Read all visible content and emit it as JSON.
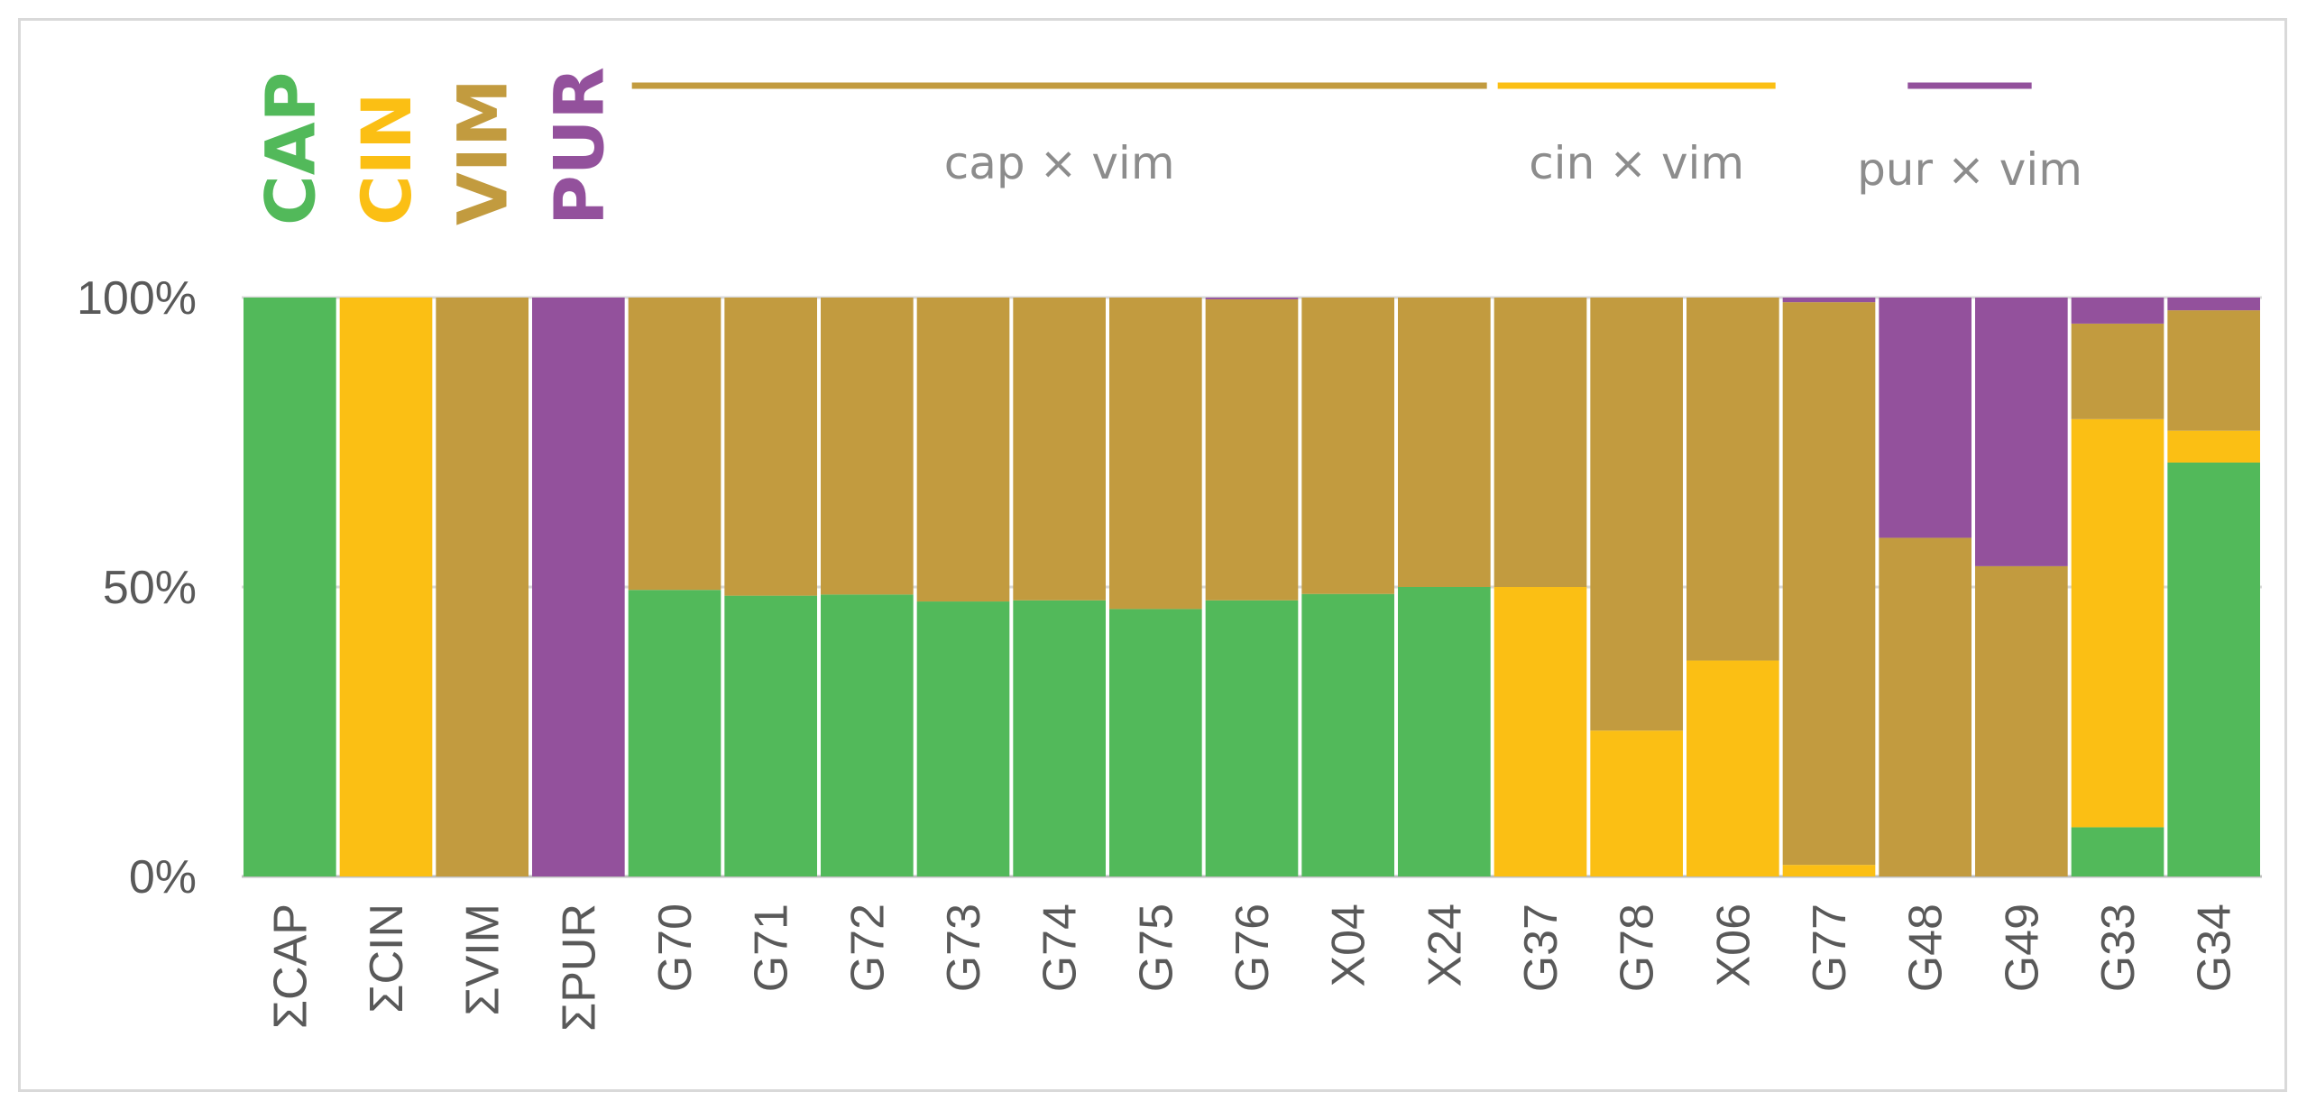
{
  "chart_data": {
    "type": "bar",
    "stacked": true,
    "normalized": true,
    "title": "",
    "xlabel": "",
    "ylabel": "",
    "ylim": [
      0,
      100
    ],
    "yticks": [
      "0%",
      "50%",
      "100%"
    ],
    "categories": [
      "ΣCAP",
      "ΣCIN",
      "ΣVIM",
      "ΣPUR",
      "G70",
      "G71",
      "G72",
      "G73",
      "G74",
      "G75",
      "G76",
      "X04",
      "X24",
      "G37",
      "G78",
      "X06",
      "G77",
      "G48",
      "G49",
      "G33",
      "G34"
    ],
    "series": [
      {
        "name": "CAP",
        "color": "#52b95a",
        "values": [
          100,
          0,
          0,
          0,
          49.5,
          48.5,
          48.7,
          47.5,
          47.7,
          46.2,
          47.7,
          48.8,
          50,
          0,
          0,
          0,
          0,
          0,
          0,
          8.5,
          71.5
        ]
      },
      {
        "name": "CIN",
        "color": "#fbbf14",
        "values": [
          0,
          100,
          0,
          0,
          0,
          0,
          0,
          0,
          0,
          0,
          0,
          0,
          0,
          50,
          25.2,
          37.3,
          2,
          0,
          0,
          70.5,
          5.5
        ]
      },
      {
        "name": "VIM",
        "color": "#c29b3f",
        "values": [
          0,
          0,
          100,
          0,
          50.5,
          51.5,
          51.3,
          52.5,
          52.3,
          53.8,
          52,
          51.2,
          50,
          50,
          74.8,
          62.7,
          97.2,
          58.5,
          53.6,
          16.5,
          20.8
        ]
      },
      {
        "name": "PUR",
        "color": "#93519c",
        "values": [
          0,
          0,
          0,
          100,
          0,
          0,
          0,
          0,
          0,
          0,
          0.3,
          0,
          0,
          0,
          0,
          0,
          0.8,
          41.5,
          46.4,
          4.5,
          2.2
        ]
      }
    ],
    "parents": [
      {
        "label": "CAP",
        "color": "#52b95a"
      },
      {
        "label": "CIN",
        "color": "#fbbf14"
      },
      {
        "label": "VIM",
        "color": "#c29b3f"
      },
      {
        "label": "PUR",
        "color": "#93519c"
      }
    ],
    "hybrid_groups": [
      {
        "label": "cap × vim",
        "color": "#c29b3f",
        "first": 4,
        "last": 12
      },
      {
        "label": "cin × vim",
        "color": "#fbbf14",
        "first": 13,
        "last": 15
      },
      {
        "label": "pur × vim",
        "color": "#93519c",
        "first": 17,
        "last": 18
      }
    ]
  }
}
